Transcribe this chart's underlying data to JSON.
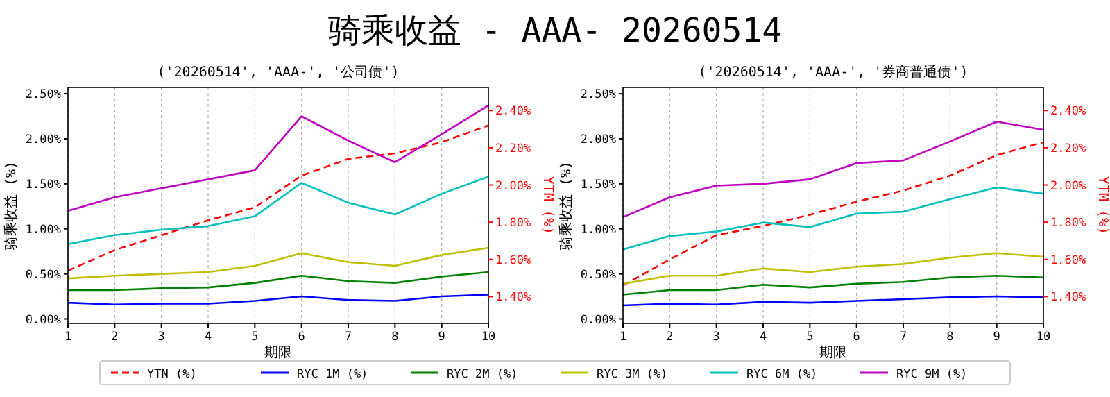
{
  "chart_data": [
    {
      "type": "line",
      "title": "骑乘收益 - AAA- 20260514",
      "subtitle": "('20260514', 'AAA-', '公司债')",
      "xlabel": "期限",
      "ylabel": "骑乘收益 (%)",
      "y2label": "YTM (%)",
      "x": [
        1,
        2,
        3,
        4,
        5,
        6,
        7,
        8,
        9,
        10
      ],
      "xlim": [
        1,
        10
      ],
      "xticks": [
        1,
        2,
        3,
        4,
        5,
        6,
        7,
        8,
        9,
        10
      ],
      "ylim": [
        -0.05,
        2.57
      ],
      "yticks": [
        {
          "value": 0,
          "label": "0.00%"
        },
        {
          "value": 0.5,
          "label": "0.50%"
        },
        {
          "value": 1,
          "label": "1.00%"
        },
        {
          "value": 1.5,
          "label": "1.50%"
        },
        {
          "value": 2,
          "label": "2.00%"
        },
        {
          "value": 2.5,
          "label": "2.50%"
        }
      ],
      "y2lim": [
        1.256,
        2.524
      ],
      "y2ticks": [
        {
          "value": 1.4,
          "label": "1.40%"
        },
        {
          "value": 1.6,
          "label": "1.60%"
        },
        {
          "value": 1.8,
          "label": "1.80%"
        },
        {
          "value": 2,
          "label": "2.00%"
        },
        {
          "value": 2.2,
          "label": "2.20%"
        },
        {
          "value": 2.4,
          "label": "2.40%"
        }
      ],
      "grid": "x",
      "legend": "bottom",
      "series": [
        {
          "name": "YTN (%)",
          "color": "#ff0000",
          "axis": "y2",
          "line_style": "dashed",
          "values": [
            1.54,
            1.65,
            1.73,
            1.81,
            1.88,
            2.05,
            2.14,
            2.17,
            2.23,
            2.32
          ]
        },
        {
          "name": "RYC_1M (%)",
          "color": "#0000ff",
          "values": [
            0.18,
            0.16,
            0.17,
            0.17,
            0.2,
            0.25,
            0.21,
            0.2,
            0.25,
            0.27
          ]
        },
        {
          "name": "RYC_2M (%)",
          "color": "#008000",
          "values": [
            0.32,
            0.32,
            0.34,
            0.35,
            0.4,
            0.48,
            0.42,
            0.4,
            0.47,
            0.52
          ]
        },
        {
          "name": "RYC_3M (%)",
          "color": "#bfbf00",
          "values": [
            0.45,
            0.48,
            0.5,
            0.52,
            0.59,
            0.73,
            0.63,
            0.59,
            0.71,
            0.79
          ]
        },
        {
          "name": "RYC_6M (%)",
          "color": "#00bfbf",
          "values": [
            0.83,
            0.93,
            0.99,
            1.03,
            1.14,
            1.51,
            1.29,
            1.16,
            1.39,
            1.58
          ]
        },
        {
          "name": "RYC_9M (%)",
          "color": "#bf00bf",
          "values": [
            1.2,
            1.35,
            1.45,
            1.55,
            1.65,
            2.25,
            1.98,
            1.74,
            2.05,
            2.37
          ]
        }
      ]
    },
    {
      "type": "line",
      "subtitle": "('20260514', 'AAA-', '券商普通债')",
      "xlabel": "期限",
      "ylabel": "骑乘收益 (%)",
      "y2label": "YTM (%)",
      "x": [
        1,
        2,
        3,
        4,
        5,
        6,
        7,
        8,
        9,
        10
      ],
      "xlim": [
        1,
        10
      ],
      "xticks": [
        1,
        2,
        3,
        4,
        5,
        6,
        7,
        8,
        9,
        10
      ],
      "ylim": [
        -0.05,
        2.57
      ],
      "yticks": [
        {
          "value": 0,
          "label": "0.00%"
        },
        {
          "value": 0.5,
          "label": "0.50%"
        },
        {
          "value": 1,
          "label": "1.00%"
        },
        {
          "value": 1.5,
          "label": "1.50%"
        },
        {
          "value": 2,
          "label": "2.00%"
        },
        {
          "value": 2.5,
          "label": "2.50%"
        }
      ],
      "y2lim": [
        1.256,
        2.524
      ],
      "y2ticks": [
        {
          "value": 1.4,
          "label": "1.40%"
        },
        {
          "value": 1.6,
          "label": "1.60%"
        },
        {
          "value": 1.8,
          "label": "1.80%"
        },
        {
          "value": 2,
          "label": "2.00%"
        },
        {
          "value": 2.2,
          "label": "2.20%"
        },
        {
          "value": 2.4,
          "label": "2.40%"
        }
      ],
      "grid": "x",
      "legend": "bottom",
      "series": [
        {
          "name": "YTN (%)",
          "color": "#ff0000",
          "axis": "y2",
          "line_style": "dashed",
          "values": [
            1.46,
            1.6,
            1.73,
            1.78,
            1.84,
            1.91,
            1.97,
            2.05,
            2.16,
            2.23
          ]
        },
        {
          "name": "RYC_1M (%)",
          "color": "#0000ff",
          "values": [
            0.15,
            0.17,
            0.16,
            0.19,
            0.18,
            0.2,
            0.22,
            0.24,
            0.25,
            0.24
          ]
        },
        {
          "name": "RYC_2M (%)",
          "color": "#008000",
          "values": [
            0.27,
            0.32,
            0.32,
            0.38,
            0.35,
            0.39,
            0.41,
            0.46,
            0.48,
            0.46
          ]
        },
        {
          "name": "RYC_3M (%)",
          "color": "#bfbf00",
          "values": [
            0.39,
            0.48,
            0.48,
            0.56,
            0.52,
            0.58,
            0.61,
            0.68,
            0.73,
            0.69
          ]
        },
        {
          "name": "RYC_6M (%)",
          "color": "#00bfbf",
          "values": [
            0.77,
            0.92,
            0.97,
            1.07,
            1.02,
            1.17,
            1.19,
            1.33,
            1.46,
            1.39
          ]
        },
        {
          "name": "RYC_9M (%)",
          "color": "#bf00bf",
          "values": [
            1.13,
            1.35,
            1.48,
            1.5,
            1.55,
            1.73,
            1.76,
            1.97,
            2.19,
            2.1
          ]
        }
      ]
    }
  ]
}
